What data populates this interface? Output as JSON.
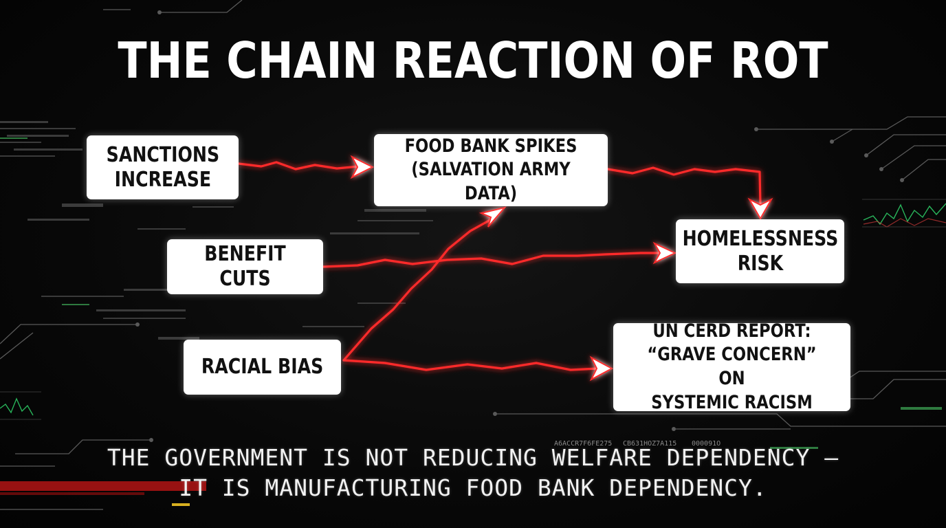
{
  "title": "THE CHAIN REACTION OF ROT",
  "nodes": {
    "sanctions": "SANCTIONS\nINCREASE",
    "food_bank": "FOOD BANK SPIKES\n(SALVATION ARMY DATA)",
    "homelessness": "HOMELESSNESS\nRISK",
    "benefit_cuts": "BENEFIT CUTS",
    "racial_bias": "RACIAL BIAS",
    "un_cerd": "UN CERD REPORT:\n“GRAVE CONCERN” ON\nSYSTEMIC RACISM"
  },
  "edges": [
    {
      "from": "SANCTIONS INCREASE",
      "to": "FOOD BANK SPIKES"
    },
    {
      "from": "FOOD BANK SPIKES",
      "to": "HOMELESSNESS RISK"
    },
    {
      "from": "BENEFIT CUTS",
      "to": "HOMELESSNESS RISK"
    },
    {
      "from": "RACIAL BIAS",
      "to": "FOOD BANK SPIKES"
    },
    {
      "from": "RACIAL BIAS",
      "to": "UN CERD REPORT"
    }
  ],
  "footer": {
    "line1": "THE GOVERNMENT IS NOT REDUCING WELFARE DEPENDENCY –",
    "line2": "IT IS MANUFACTURING FOOD BANK DEPENDENCY."
  },
  "decor_codes": {
    "code1": "A6ACCR7F6FE275",
    "code2": "CB631HOZ7A115",
    "code3": "000091O"
  },
  "colors": {
    "background": "#060606",
    "arrow": "#ff2a2a",
    "node_fill": "#ffffff",
    "text": "#ffffff",
    "accent_green": "#2fd36a"
  }
}
